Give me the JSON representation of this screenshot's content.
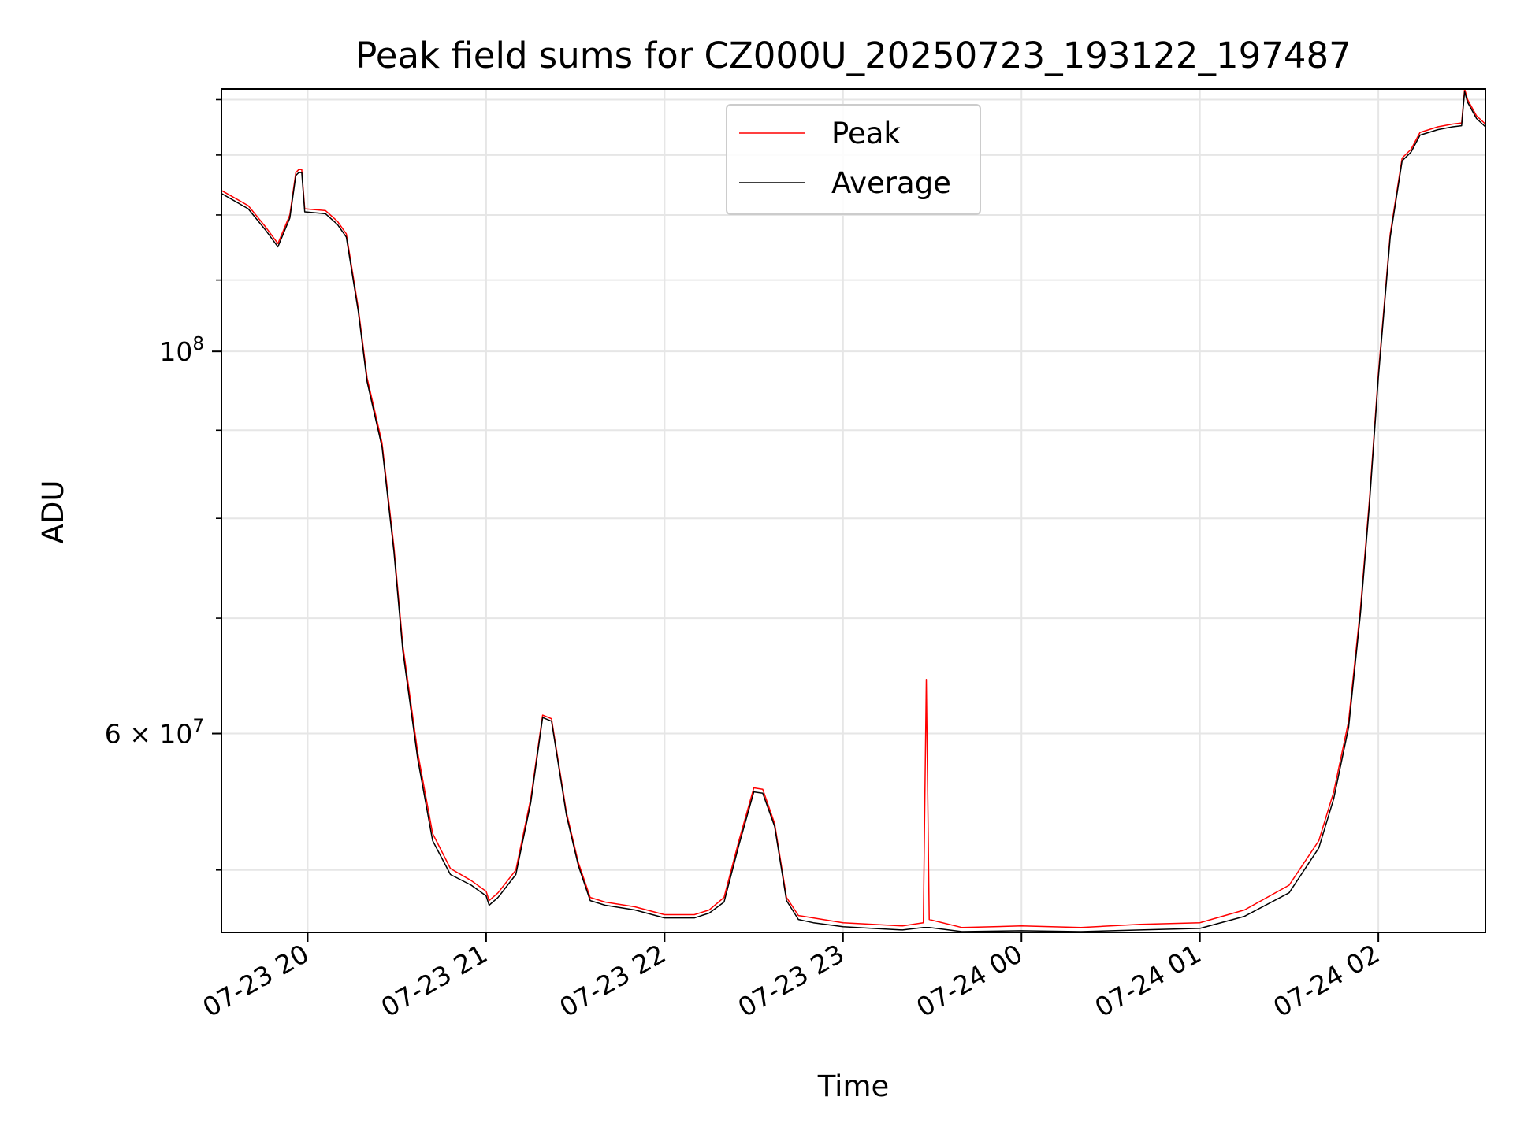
{
  "chart_data": {
    "type": "line",
    "title": "Peak field sums for CZ000U_20250723_193122_197487",
    "xlabel": "Time",
    "ylabel": "ADU",
    "yscale": "log",
    "grid": true,
    "legend_position": "upper center",
    "xlim": [
      "2025-07-23 19:31",
      "2025-07-24 02:36"
    ],
    "ylim": [
      46000000,
      142000000
    ],
    "x_ticks": [
      {
        "value": "2025-07-23 20:00",
        "label": "07-23 20"
      },
      {
        "value": "2025-07-23 21:00",
        "label": "07-23 21"
      },
      {
        "value": "2025-07-23 22:00",
        "label": "07-23 22"
      },
      {
        "value": "2025-07-23 23:00",
        "label": "07-23 23"
      },
      {
        "value": "2025-07-24 00:00",
        "label": "07-24 00"
      },
      {
        "value": "2025-07-24 01:00",
        "label": "07-24 01"
      },
      {
        "value": "2025-07-24 02:00",
        "label": "07-24 02"
      }
    ],
    "y_ticks": [
      {
        "value": 100000000,
        "label": "10^8"
      },
      {
        "value": 60000000,
        "label": "6 × 10^7"
      }
    ],
    "series": [
      {
        "name": "Peak",
        "color": "#ff0000",
        "x": [
          "2025-07-23 19:31",
          "2025-07-23 19:40",
          "2025-07-23 19:46",
          "2025-07-23 19:50",
          "2025-07-23 19:54",
          "2025-07-23 19:56",
          "2025-07-23 19:57",
          "2025-07-23 19:58",
          "2025-07-23 19:59",
          "2025-07-23 20:06",
          "2025-07-23 20:10",
          "2025-07-23 20:13",
          "2025-07-23 20:17",
          "2025-07-23 20:20",
          "2025-07-23 20:25",
          "2025-07-23 20:29",
          "2025-07-23 20:32",
          "2025-07-23 20:37",
          "2025-07-23 20:42",
          "2025-07-23 20:48",
          "2025-07-23 20:55",
          "2025-07-23 21:00",
          "2025-07-23 21:01",
          "2025-07-23 21:04",
          "2025-07-23 21:10",
          "2025-07-23 21:15",
          "2025-07-23 21:19",
          "2025-07-23 21:22",
          "2025-07-23 21:27",
          "2025-07-23 21:31",
          "2025-07-23 21:35",
          "2025-07-23 21:40",
          "2025-07-23 21:50",
          "2025-07-23 22:00",
          "2025-07-23 22:10",
          "2025-07-23 22:15",
          "2025-07-23 22:20",
          "2025-07-23 22:25",
          "2025-07-23 22:30",
          "2025-07-23 22:33",
          "2025-07-23 22:37",
          "2025-07-23 22:41",
          "2025-07-23 22:45",
          "2025-07-23 22:50",
          "2025-07-23 23:00",
          "2025-07-23 23:10",
          "2025-07-23 23:20",
          "2025-07-23 23:27",
          "2025-07-23 23:28",
          "2025-07-23 23:29",
          "2025-07-23 23:40",
          "2025-07-24 00:00",
          "2025-07-24 00:20",
          "2025-07-24 00:40",
          "2025-07-24 01:00",
          "2025-07-24 01:15",
          "2025-07-24 01:30",
          "2025-07-24 01:40",
          "2025-07-24 01:45",
          "2025-07-24 01:50",
          "2025-07-24 01:54",
          "2025-07-24 01:57",
          "2025-07-24 02:00",
          "2025-07-24 02:04",
          "2025-07-24 02:08",
          "2025-07-24 02:11",
          "2025-07-24 02:14",
          "2025-07-24 02:17",
          "2025-07-24 02:20",
          "2025-07-24 02:25",
          "2025-07-24 02:28",
          "2025-07-24 02:29",
          "2025-07-24 02:30",
          "2025-07-24 02:33",
          "2025-07-24 02:36"
        ],
        "y": [
          124000000,
          121500000,
          118000000,
          115500000,
          120000000,
          127000000,
          127500000,
          127500000,
          121000000,
          120700000,
          119000000,
          117000000,
          106000000,
          96500000,
          88500000,
          77000000,
          67500000,
          58500000,
          52500000,
          50100000,
          49300000,
          48600000,
          48000000,
          48500000,
          50000000,
          55000000,
          61500000,
          61200000,
          54000000,
          50500000,
          48200000,
          47900000,
          47600000,
          47100000,
          47100000,
          47400000,
          48200000,
          52000000,
          55800000,
          55700000,
          53200000,
          48200000,
          47050000,
          46900000,
          46600000,
          46500000,
          46400000,
          46600000,
          64500000,
          46800000,
          46300000,
          46400000,
          46300000,
          46500000,
          46600000,
          47400000,
          49000000,
          52000000,
          55500000,
          61000000,
          71000000,
          82000000,
          97000000,
          117000000,
          129500000,
          131000000,
          134000000,
          134500000,
          135000000,
          135500000,
          135700000,
          142000000,
          140000000,
          137000000,
          135500000
        ]
      },
      {
        "name": "Average",
        "color": "#000000",
        "x": [
          "2025-07-23 19:31",
          "2025-07-23 19:40",
          "2025-07-23 19:46",
          "2025-07-23 19:50",
          "2025-07-23 19:54",
          "2025-07-23 19:56",
          "2025-07-23 19:57",
          "2025-07-23 19:58",
          "2025-07-23 19:59",
          "2025-07-23 20:06",
          "2025-07-23 20:10",
          "2025-07-23 20:13",
          "2025-07-23 20:17",
          "2025-07-23 20:20",
          "2025-07-23 20:25",
          "2025-07-23 20:29",
          "2025-07-23 20:32",
          "2025-07-23 20:37",
          "2025-07-23 20:42",
          "2025-07-23 20:48",
          "2025-07-23 20:55",
          "2025-07-23 21:00",
          "2025-07-23 21:01",
          "2025-07-23 21:04",
          "2025-07-23 21:10",
          "2025-07-23 21:15",
          "2025-07-23 21:19",
          "2025-07-23 21:22",
          "2025-07-23 21:27",
          "2025-07-23 21:31",
          "2025-07-23 21:35",
          "2025-07-23 21:40",
          "2025-07-23 21:50",
          "2025-07-23 22:00",
          "2025-07-23 22:10",
          "2025-07-23 22:15",
          "2025-07-23 22:20",
          "2025-07-23 22:25",
          "2025-07-23 22:30",
          "2025-07-23 22:33",
          "2025-07-23 22:37",
          "2025-07-23 22:41",
          "2025-07-23 22:45",
          "2025-07-23 22:50",
          "2025-07-23 23:00",
          "2025-07-23 23:10",
          "2025-07-23 23:20",
          "2025-07-23 23:27",
          "2025-07-23 23:28",
          "2025-07-23 23:29",
          "2025-07-23 23:40",
          "2025-07-24 00:00",
          "2025-07-24 00:20",
          "2025-07-24 00:40",
          "2025-07-24 01:00",
          "2025-07-24 01:15",
          "2025-07-24 01:30",
          "2025-07-24 01:40",
          "2025-07-24 01:45",
          "2025-07-24 01:50",
          "2025-07-24 01:54",
          "2025-07-24 01:57",
          "2025-07-24 02:00",
          "2025-07-24 02:04",
          "2025-07-24 02:08",
          "2025-07-24 02:11",
          "2025-07-24 02:14",
          "2025-07-24 02:17",
          "2025-07-24 02:20",
          "2025-07-24 02:25",
          "2025-07-24 02:28",
          "2025-07-24 02:29",
          "2025-07-24 02:30",
          "2025-07-24 02:33",
          "2025-07-24 02:36"
        ],
        "y": [
          123500000,
          121000000,
          117500000,
          115000000,
          119500000,
          126500000,
          127000000,
          127000000,
          120500000,
          120200000,
          118500000,
          116500000,
          105500000,
          96000000,
          88000000,
          76500000,
          67000000,
          58000000,
          52000000,
          49700000,
          49000000,
          48300000,
          47700000,
          48200000,
          49700000,
          54700000,
          61300000,
          61000000,
          53800000,
          50300000,
          48000000,
          47700000,
          47400000,
          46900000,
          46900000,
          47200000,
          47900000,
          51700000,
          55500000,
          55400000,
          53000000,
          48000000,
          46800000,
          46600000,
          46350000,
          46250000,
          46150000,
          46300000,
          46300000,
          46300000,
          46050000,
          46100000,
          46050000,
          46150000,
          46250000,
          47000000,
          48500000,
          51500000,
          55000000,
          60500000,
          70500000,
          81500000,
          96500000,
          116500000,
          129000000,
          130500000,
          133500000,
          134000000,
          134500000,
          135000000,
          135200000,
          141500000,
          139500000,
          136500000,
          135000000
        ]
      }
    ]
  }
}
